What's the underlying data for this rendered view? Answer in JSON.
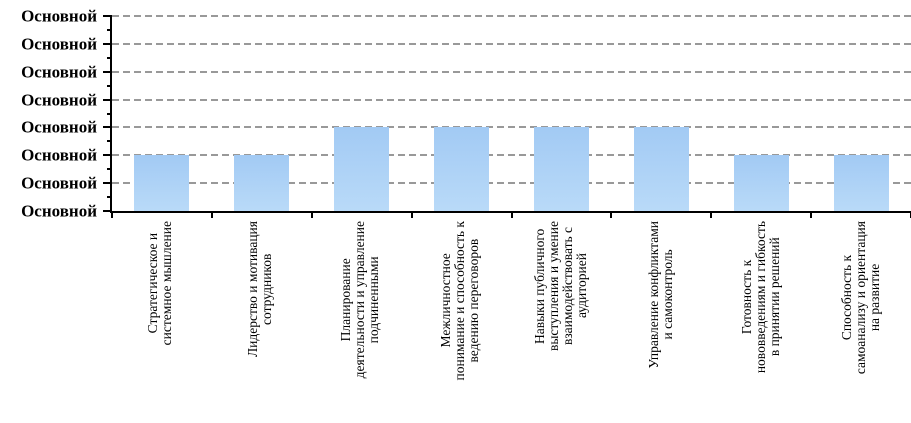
{
  "chart_data": {
    "type": "bar",
    "title": "",
    "xlabel": "",
    "ylabel": "",
    "categories": [
      "Стратегическое и\nсистемное мышление",
      "Лидерство и мотивация\nсотрудников",
      "Планирование\nдеятельности и управление\nподчиненными",
      "Межличностное\nпонимание и способность к\nведению переговоров",
      "Навыки публичного\nвыступления и умение\nвзаимодействовать с\nаудиторией",
      "Управление конфликтами\nи самоконтроль",
      "Готовность к\nнововведениям и гибкость\nв принятии решений",
      "Способность к\nсамоанализу и ориентация\nна развитие"
    ],
    "values": [
      2,
      2,
      3,
      3,
      3,
      3,
      2,
      2
    ],
    "ylim": [
      0,
      7
    ],
    "y_tick_labels": [
      "Основной",
      "Основной",
      "Основной",
      "Основной",
      "Основной",
      "Основной",
      "Основной",
      "Основной"
    ],
    "note": "Every y-axis tick shows the placeholder text 'Основной' (broken Excel 'General' number format); bar heights are measured in gridline intervals (top tick = 7 intervals above baseline).",
    "grid": {
      "horizontal": true,
      "style": "dashed"
    },
    "legend": "none",
    "colors": {
      "bar_top": "#A2CAF4",
      "bar_bottom": "#B9DAF8",
      "gridline": "#999999",
      "axis": "#000000",
      "text": "#000000",
      "background": "#FFFFFF"
    }
  }
}
